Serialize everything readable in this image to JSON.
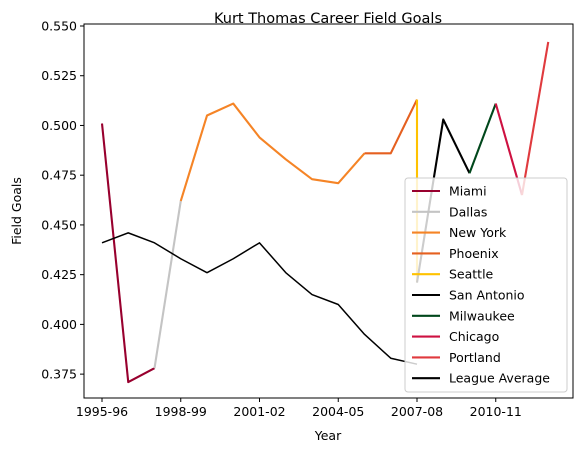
{
  "chart_data": {
    "type": "line",
    "title": "Kurt Thomas  Career Field Goals",
    "xlabel": "Year",
    "ylabel": "Field Goals",
    "x_categories": [
      "1995-96",
      "1996-97",
      "1997-98",
      "1998-99",
      "1999-00",
      "2000-01",
      "2001-02",
      "2002-03",
      "2003-04",
      "2004-05",
      "2005-06",
      "2006-07",
      "2007-08",
      "2008-09",
      "2009-10",
      "2010-11",
      "2011-12",
      "2012-13"
    ],
    "x_tick_labels": [
      "1995-96",
      "1998-99",
      "2001-02",
      "2004-05",
      "2007-08",
      "2010-11"
    ],
    "ylim": [
      0.363,
      0.551
    ],
    "y_ticks": [
      0.375,
      0.4,
      0.425,
      0.45,
      0.475,
      0.5,
      0.525,
      0.55
    ],
    "y_tick_labels": [
      "0.375",
      "0.400",
      "0.425",
      "0.450",
      "0.475",
      "0.500",
      "0.525",
      "0.550"
    ],
    "grid": false,
    "legend_position": "lower right",
    "series": [
      {
        "name": "Miami",
        "color": "#98002e",
        "points": [
          [
            "1995-96",
            0.501
          ],
          [
            "1996-97",
            0.371
          ],
          [
            "1997-98",
            0.378
          ]
        ]
      },
      {
        "name": "Dallas",
        "color": "#c4c4c4",
        "points": [
          [
            "1997-98",
            0.378
          ],
          [
            "1998-99",
            0.462
          ]
        ]
      },
      {
        "name": "New York",
        "color": "#f58426",
        "points": [
          [
            "1998-99",
            0.462
          ],
          [
            "1999-00",
            0.505
          ],
          [
            "2000-01",
            0.511
          ],
          [
            "2001-02",
            0.494
          ],
          [
            "2002-03",
            0.483
          ],
          [
            "2003-04",
            0.473
          ],
          [
            "2004-05",
            0.471
          ],
          [
            "2005-06",
            0.486
          ]
        ]
      },
      {
        "name": "Phoenix",
        "color": "#e56020",
        "points": [
          [
            "2005-06",
            0.486
          ],
          [
            "2006-07",
            0.486
          ],
          [
            "2007-08",
            0.513
          ]
        ]
      },
      {
        "name": "Seattle",
        "color": "#ffc200",
        "points": [
          [
            "2007-08",
            0.513
          ],
          [
            "2007-08",
            0.421
          ]
        ]
      },
      {
        "name": "San Antonio",
        "color": "#000000",
        "points": [
          [
            "2007-08",
            0.421
          ],
          [
            "2008-09",
            0.503
          ],
          [
            "2009-10",
            0.476
          ]
        ]
      },
      {
        "name": "Milwaukee",
        "color": "#00471b",
        "points": [
          [
            "2009-10",
            0.476
          ],
          [
            "2010-11",
            0.511
          ]
        ]
      },
      {
        "name": "Chicago",
        "color": "#ce1141",
        "points": [
          [
            "2010-11",
            0.511
          ],
          [
            "2011-12",
            0.465
          ]
        ]
      },
      {
        "name": "Portland",
        "color": "#e03a3e",
        "points": [
          [
            "2011-12",
            0.465
          ],
          [
            "2012-13",
            0.542
          ]
        ]
      },
      {
        "name": "League Average",
        "color": "#000000",
        "points": [
          [
            "1995-96",
            0.441
          ],
          [
            "1996-97",
            0.446
          ],
          [
            "1997-98",
            0.441
          ],
          [
            "1998-99",
            0.433
          ],
          [
            "1999-00",
            0.426
          ],
          [
            "2000-01",
            0.433
          ],
          [
            "2001-02",
            0.441
          ],
          [
            "2002-03",
            0.426
          ],
          [
            "2003-04",
            0.415
          ],
          [
            "2004-05",
            0.41
          ],
          [
            "2005-06",
            0.395
          ],
          [
            "2006-07",
            0.383
          ],
          [
            "2007-08",
            0.38
          ]
        ]
      }
    ]
  }
}
